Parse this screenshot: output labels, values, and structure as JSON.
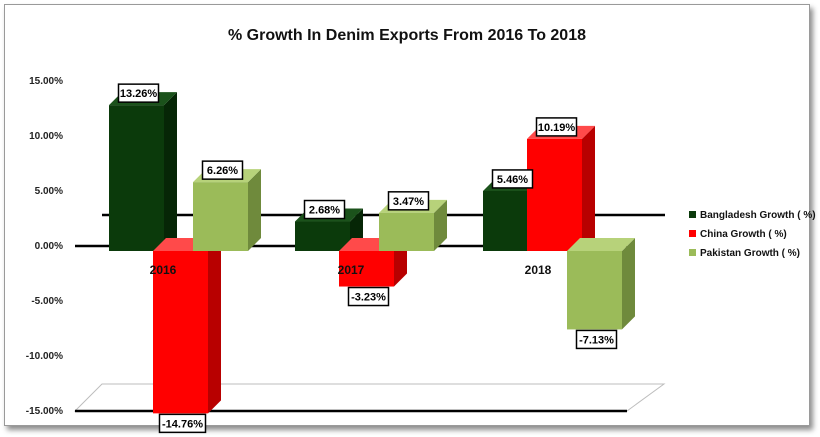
{
  "chart_data": {
    "type": "bar",
    "title": "% Growth In Denim Exports From 2016 To 2018",
    "categories": [
      "2016",
      "2017",
      "2018"
    ],
    "series": [
      {
        "name": "Bangladesh Growth ( %)",
        "values": [
          13.26,
          2.68,
          5.46
        ],
        "labels": [
          "13.26%",
          "2.68%",
          "5.46%"
        ],
        "color": "#0b3a0b",
        "side": "#062606",
        "top": "#1b521b"
      },
      {
        "name": "China Growth ( %)",
        "values": [
          -14.76,
          -3.23,
          10.19
        ],
        "labels": [
          "-14.76%",
          "-3.23%",
          "10.19%"
        ],
        "color": "#ff0000",
        "side": "#b80000",
        "top": "#ff4a4a"
      },
      {
        "name": "Pakistan Growth ( %)",
        "values": [
          6.26,
          3.47,
          -7.13
        ],
        "labels": [
          "6.26%",
          "3.47%",
          "-7.13%"
        ],
        "color": "#9bbb59",
        "side": "#6f8a3c",
        "top": "#b7d27a"
      }
    ],
    "yticks": [
      "15.00%",
      "10.00%",
      "5.00%",
      "0.00%",
      "-5.00%",
      "-10.00%",
      "-15.00%"
    ],
    "ytick_values": [
      15,
      10,
      5,
      0,
      -5,
      -10,
      -15
    ],
    "ylim": [
      -15,
      15
    ],
    "xlabel": "",
    "ylabel": "",
    "legend_position": "right"
  }
}
